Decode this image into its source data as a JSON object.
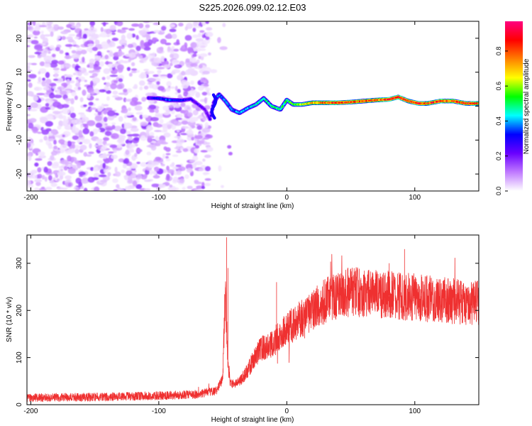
{
  "title": "S225.2026.099.02.12.E03",
  "chart_data": [
    {
      "type": "heatmap",
      "xlabel": "Height of straight line (km)",
      "ylabel": "Frequency (Hz)",
      "xlim": [
        -203,
        150
      ],
      "ylim": [
        -25,
        25
      ],
      "xticks": [
        -200,
        -100,
        0,
        100
      ],
      "yticks": [
        -20,
        -10,
        0,
        10,
        20
      ],
      "noise_region_x": [
        -203,
        -60
      ],
      "track_points": [
        {
          "x": -108,
          "f": 2.4,
          "a": 0.25
        },
        {
          "x": -100,
          "f": 2.3,
          "a": 0.3
        },
        {
          "x": -92,
          "f": 1.8,
          "a": 0.35
        },
        {
          "x": -82,
          "f": 1.7,
          "a": 0.3
        },
        {
          "x": -75,
          "f": 2.1,
          "a": 0.25
        },
        {
          "x": -64,
          "f": -1.0,
          "a": 0.2
        },
        {
          "x": -60,
          "f": -3.8,
          "a": 0.25
        },
        {
          "x": -57,
          "f": 1.0,
          "a": 0.3
        },
        {
          "x": -53,
          "f": 3.5,
          "a": 0.35
        },
        {
          "x": -48,
          "f": 1.5,
          "a": 0.35
        },
        {
          "x": -43,
          "f": -1.0,
          "a": 0.35
        },
        {
          "x": -37,
          "f": -2.0,
          "a": 0.4
        },
        {
          "x": -30,
          "f": -0.5,
          "a": 0.4
        },
        {
          "x": -24,
          "f": 0.5,
          "a": 0.45
        },
        {
          "x": -18,
          "f": 2.3,
          "a": 0.45
        },
        {
          "x": -12,
          "f": 0.0,
          "a": 0.5
        },
        {
          "x": -5,
          "f": -1.0,
          "a": 0.5
        },
        {
          "x": 0,
          "f": 1.8,
          "a": 0.5
        },
        {
          "x": 5,
          "f": 0.5,
          "a": 0.55
        },
        {
          "x": 12,
          "f": 0.5,
          "a": 0.6
        },
        {
          "x": 20,
          "f": 1.0,
          "a": 0.75
        },
        {
          "x": 30,
          "f": 1.0,
          "a": 0.8
        },
        {
          "x": 40,
          "f": 1.0,
          "a": 0.85
        },
        {
          "x": 50,
          "f": 1.2,
          "a": 0.8
        },
        {
          "x": 60,
          "f": 1.5,
          "a": 0.75
        },
        {
          "x": 70,
          "f": 1.8,
          "a": 0.8
        },
        {
          "x": 80,
          "f": 2.0,
          "a": 0.85
        },
        {
          "x": 87,
          "f": 2.7,
          "a": 0.9
        },
        {
          "x": 95,
          "f": 1.5,
          "a": 0.8
        },
        {
          "x": 103,
          "f": 0.8,
          "a": 0.85
        },
        {
          "x": 110,
          "f": 0.8,
          "a": 0.8
        },
        {
          "x": 120,
          "f": 1.5,
          "a": 0.85
        },
        {
          "x": 130,
          "f": 1.5,
          "a": 0.8
        },
        {
          "x": 140,
          "f": 0.8,
          "a": 0.85
        },
        {
          "x": 150,
          "f": 0.8,
          "a": 0.8
        }
      ],
      "colorbar": {
        "label": "Normalized spectral amplitude",
        "range": [
          0,
          0.97
        ],
        "ticks": [
          0.0,
          0.2,
          0.4,
          0.6,
          0.8
        ],
        "tick_labels": [
          "0.0",
          "0.2",
          "0.4",
          "0.6",
          "0.8"
        ],
        "colors": [
          "#ffffff",
          "#c07aff",
          "#6a00ff",
          "#0000ff",
          "#00ffff",
          "#00ff00",
          "#ffff00",
          "#ff8000",
          "#ff0000",
          "#ff0080"
        ]
      }
    },
    {
      "type": "line",
      "xlabel": "Height of straight line (km)",
      "ylabel": "SNR (10 * v/v)",
      "xlim": [
        -203,
        150
      ],
      "ylim": [
        0,
        360
      ],
      "xticks": [
        -200,
        -100,
        0,
        100
      ],
      "yticks": [
        0,
        100,
        200,
        300
      ],
      "color": "#ef3030",
      "envelope": {
        "x": [
          -203,
          -150,
          -100,
          -70,
          -55,
          -50,
          -48,
          -46,
          -44,
          -40,
          -35,
          -30,
          -25,
          -20,
          -15,
          -10,
          -5,
          0,
          10,
          20,
          30,
          40,
          50,
          60,
          80,
          100,
          120,
          150
        ],
        "y": [
          15,
          16,
          19,
          22,
          30,
          55,
          250,
          80,
          45,
          45,
          55,
          75,
          100,
          120,
          125,
          130,
          150,
          160,
          180,
          200,
          220,
          232,
          240,
          238,
          232,
          228,
          222,
          215
        ]
      },
      "spikes": [
        {
          "x": -47,
          "y": 355
        },
        {
          "x": -46,
          "y": 290
        },
        {
          "x": 92,
          "y": 330
        },
        {
          "x": 80,
          "y": 300
        },
        {
          "x": -8,
          "y": 260
        },
        {
          "x": 148,
          "y": 260
        }
      ]
    }
  ]
}
